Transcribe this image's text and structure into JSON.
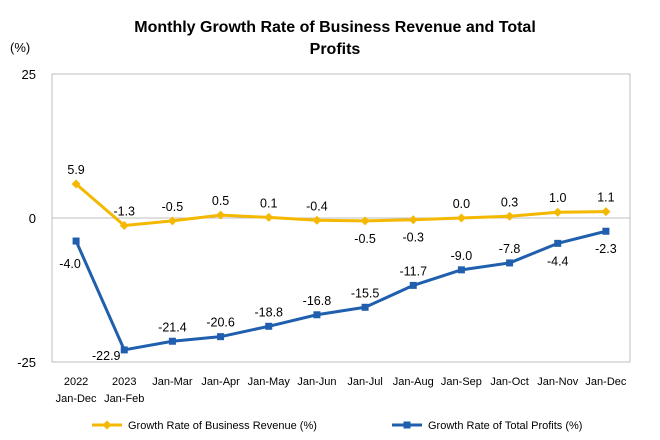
{
  "chart_data": {
    "type": "line",
    "title_lines": [
      "Monthly Growth Rate of Business Revenue and Total",
      "Profits"
    ],
    "ylabel": "(%)",
    "ylim": [
      -25,
      25
    ],
    "yticks": [
      "25",
      "0",
      "-25"
    ],
    "categories": [
      [
        "2022",
        "Jan-Dec"
      ],
      [
        "2023",
        "Jan-Feb"
      ],
      [
        "Jan-Mar"
      ],
      [
        "Jan-Apr"
      ],
      [
        "Jan-May"
      ],
      [
        "Jan-Jun"
      ],
      [
        "Jan-Jul"
      ],
      [
        "Jan-Aug"
      ],
      [
        "Jan-Sep"
      ],
      [
        "Jan-Oct"
      ],
      [
        "Jan-Nov"
      ],
      [
        "Jan-Dec"
      ]
    ],
    "series": [
      {
        "name": "Growth Rate of Business Revenue (%)",
        "color": "#F5B800",
        "marker": "diamond",
        "values": [
          5.9,
          -1.3,
          -0.5,
          0.5,
          0.1,
          -0.4,
          -0.5,
          -0.3,
          0.0,
          0.3,
          1.0,
          1.1
        ],
        "labels": [
          "5.9",
          "-1.3",
          "-0.5",
          "0.5",
          "0.1",
          "-0.4",
          "-0.5",
          "-0.3",
          "0.0",
          "0.3",
          "1.0",
          "1.1"
        ]
      },
      {
        "name": "Growth Rate of Total Profits (%)",
        "color": "#1F5FAE",
        "marker": "square",
        "values": [
          -4.0,
          -22.9,
          -21.4,
          -20.6,
          -18.8,
          -16.8,
          -15.5,
          -11.7,
          -9.0,
          -7.8,
          -4.4,
          -2.3
        ],
        "labels": [
          "-4.0",
          "-22.9",
          "-21.4",
          "-20.6",
          "-18.8",
          "-16.8",
          "-15.5",
          "-11.7",
          "-9.0",
          "-7.8",
          "-4.4",
          "-2.3"
        ]
      }
    ],
    "legend_position": "bottom",
    "grid": false
  }
}
